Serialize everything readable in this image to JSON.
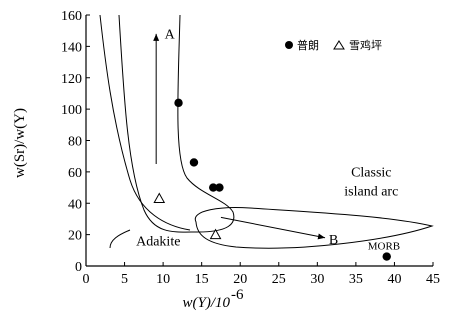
{
  "chart_data": {
    "type": "scatter",
    "title": "",
    "xlabel_main": "w(Y)/10",
    "xlabel_exp": "-6",
    "ylabel": "w(Sr)/w(Y)",
    "xlim": [
      0,
      45
    ],
    "ylim": [
      0,
      160
    ],
    "xticks": [
      0,
      5,
      10,
      15,
      20,
      25,
      30,
      35,
      40,
      45
    ],
    "yticks": [
      0,
      20,
      40,
      60,
      80,
      100,
      120,
      140,
      160
    ],
    "grid": false,
    "legend_position": "top-right",
    "series": [
      {
        "name": "普朗",
        "marker": "filled-circle",
        "points": [
          {
            "x": 12.0,
            "y": 104
          },
          {
            "x": 14.0,
            "y": 66
          },
          {
            "x": 16.5,
            "y": 50
          },
          {
            "x": 17.3,
            "y": 50
          }
        ]
      },
      {
        "name": "雪鸡坪",
        "marker": "open-triangle",
        "points": [
          {
            "x": 9.5,
            "y": 43
          },
          {
            "x": 16.8,
            "y": 20
          }
        ]
      }
    ],
    "extra_points": [
      {
        "label": "MORB",
        "x": 39.0,
        "y": 6,
        "marker": "filled-circle"
      }
    ],
    "annotations": [
      {
        "text": "A",
        "x": 10.2,
        "y": 145
      },
      {
        "text": "B",
        "x": 31.5,
        "y": 14
      },
      {
        "text": "Classic",
        "x": 37,
        "y": 57
      },
      {
        "text": "island arc",
        "x": 37,
        "y": 45
      },
      {
        "text": "Adakite",
        "x": 6.5,
        "y": 13
      }
    ]
  }
}
